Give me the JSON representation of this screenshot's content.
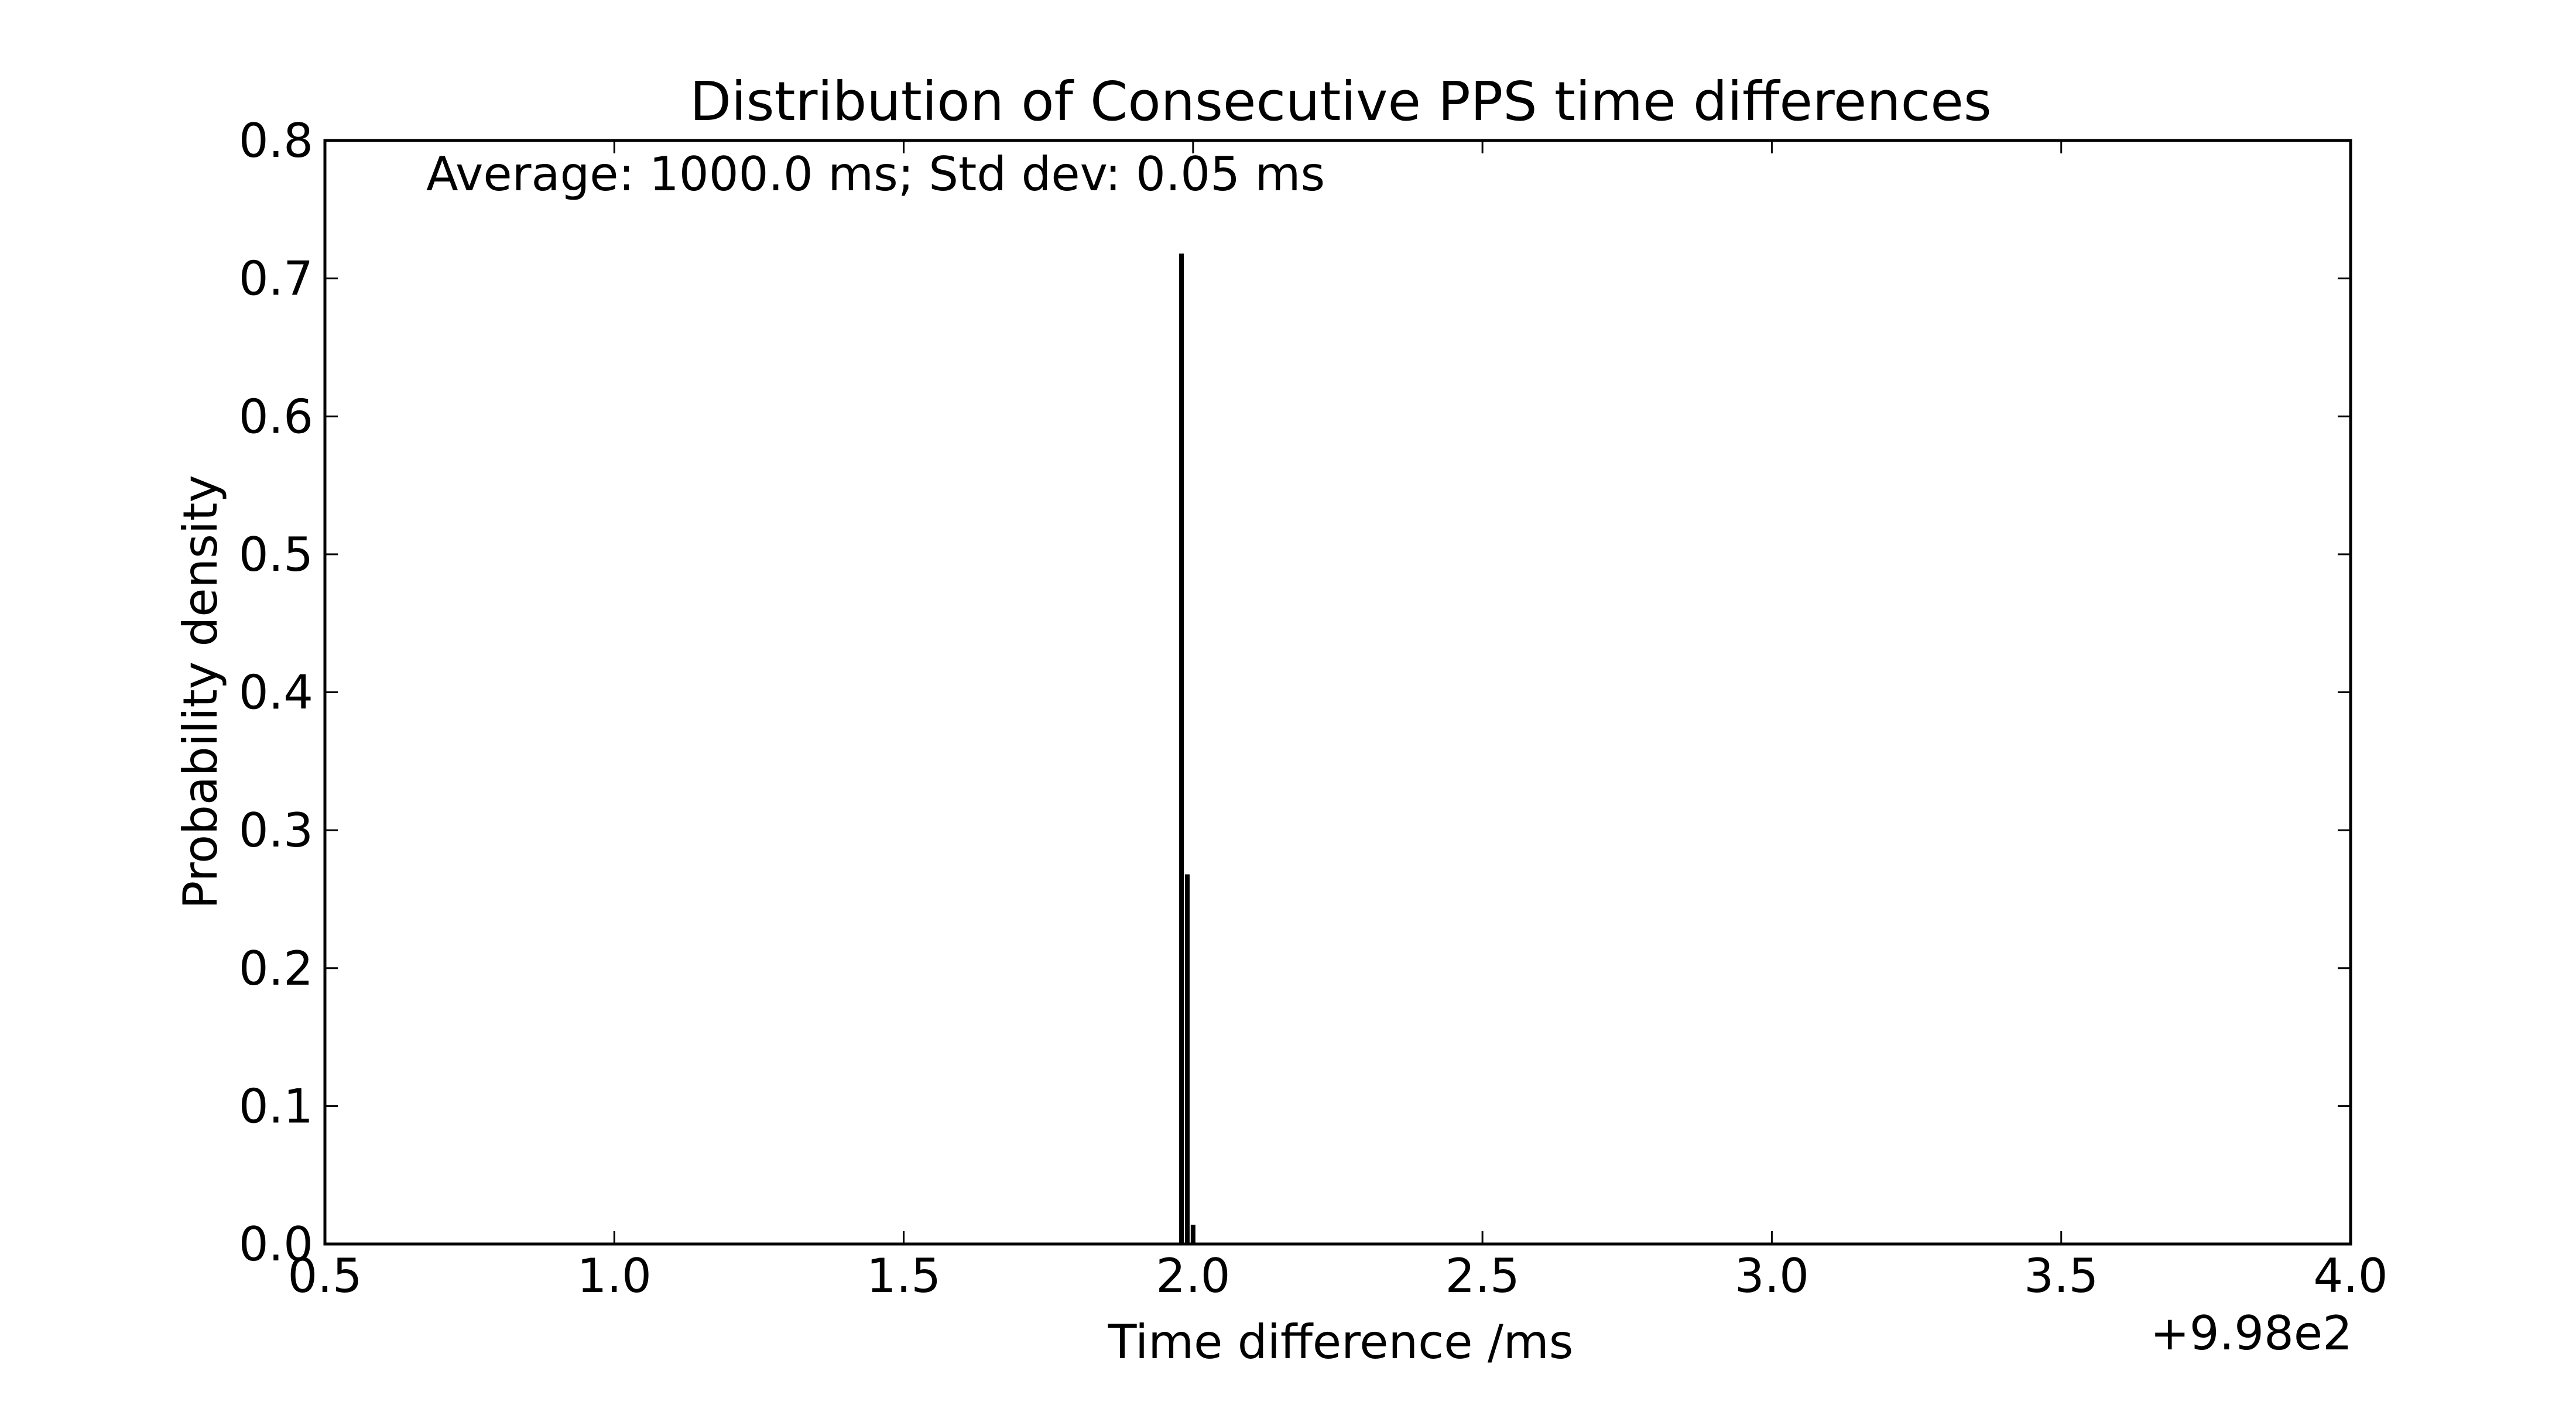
{
  "chart_data": {
    "type": "bar",
    "title": "Distribution of Consecutive PPS time differences",
    "xlabel": "Time difference /ms",
    "ylabel": "Probability density",
    "annotation": "Average: 1000.0 ms;  Std dev: 0.05 ms",
    "x_offset_label": "+9.98e2",
    "xlim": [
      0.5,
      4.0
    ],
    "ylim": [
      0.0,
      0.8
    ],
    "xticks": [
      "0.5",
      "1.0",
      "1.5",
      "2.0",
      "2.5",
      "3.0",
      "3.5",
      "4.0"
    ],
    "yticks": [
      "0.0",
      "0.1",
      "0.2",
      "0.3",
      "0.4",
      "0.5",
      "0.6",
      "0.7",
      "0.8"
    ],
    "bars": [
      {
        "x": 1.98,
        "value": 0.718
      },
      {
        "x": 1.99,
        "value": 0.268
      },
      {
        "x": 2.0,
        "value": 0.014
      }
    ],
    "bar_color": "#000000",
    "grid": false,
    "legend": "none"
  }
}
